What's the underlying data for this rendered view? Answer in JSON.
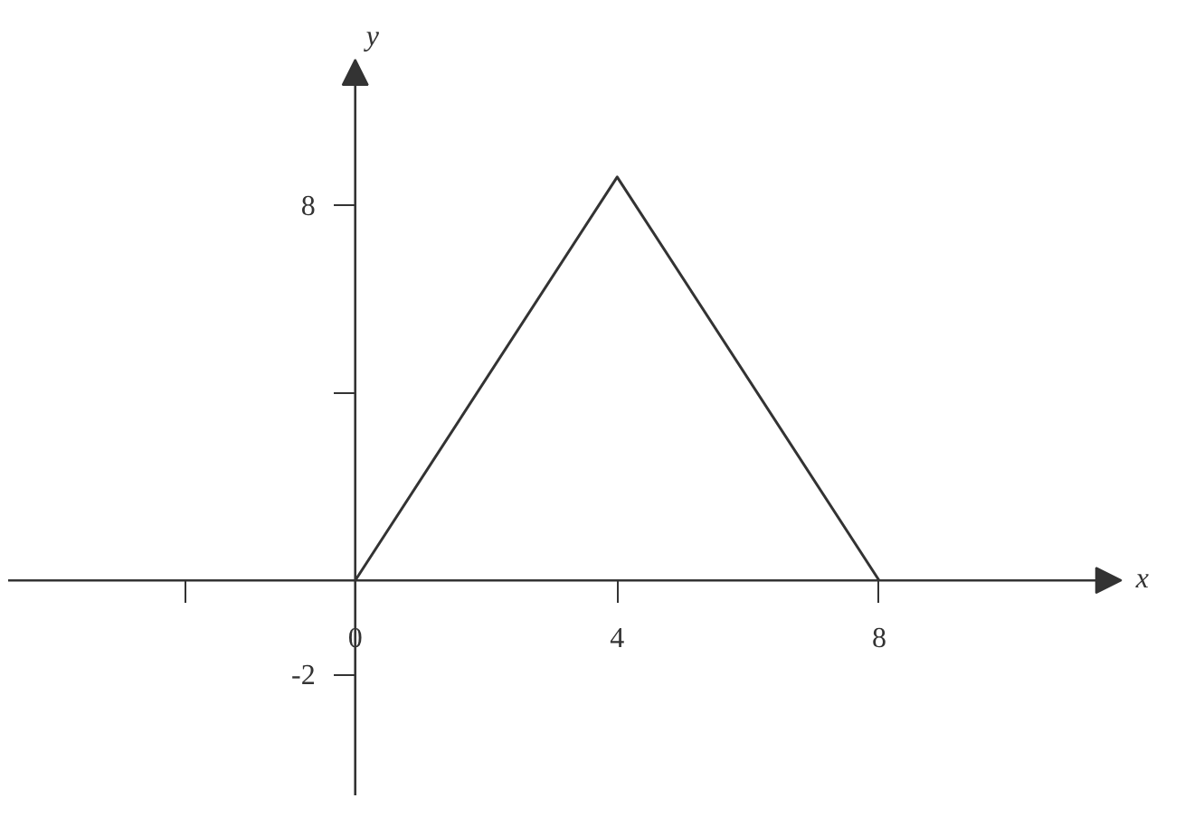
{
  "chart_data": {
    "type": "line",
    "xlabel": "x",
    "ylabel": "y",
    "x": [
      0,
      4,
      8
    ],
    "series": [
      {
        "color": "#333333",
        "values": [
          0,
          8.6,
          0
        ]
      }
    ],
    "xlim": [
      -5.3,
      11.7
    ],
    "ylim": [
      -4.6,
      11.1
    ],
    "xticks": [
      {
        "value": -2.6,
        "label": null
      },
      0,
      4,
      8
    ],
    "yticks": [
      {
        "value": -2,
        "label": "-2"
      },
      {
        "value": 4,
        "label": null
      },
      8
    ],
    "grid": false,
    "marker": "none",
    "line_style": "solid"
  }
}
